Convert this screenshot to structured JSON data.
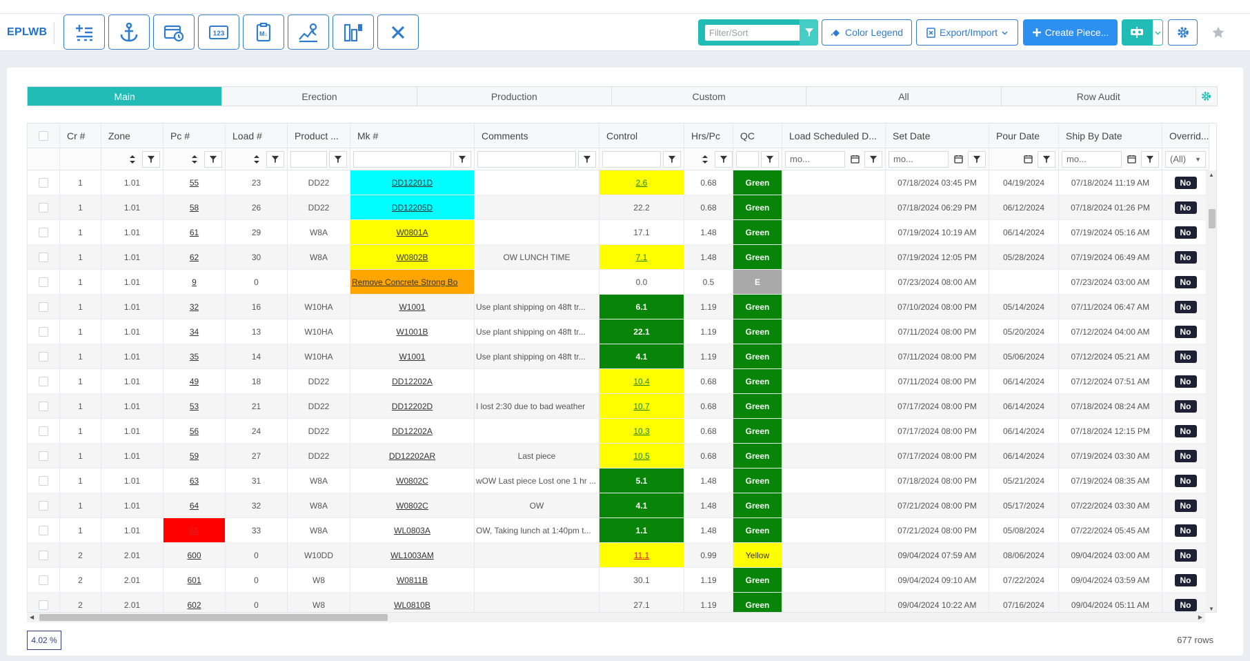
{
  "app": {
    "brand": "EPLWB"
  },
  "toolbar": {
    "icon_buttons": [
      {
        "name": "add-row-icon"
      },
      {
        "name": "anchor-icon"
      },
      {
        "name": "calendar-clock-icon"
      },
      {
        "name": "number-123-icon"
      },
      {
        "name": "clipboard-markdown-icon"
      },
      {
        "name": "crane-pour-icon"
      },
      {
        "name": "layout-columns-icon"
      },
      {
        "name": "close-icon"
      }
    ],
    "filter_placeholder": "Filter/Sort",
    "color_legend_label": "Color Legend",
    "export_import_label": "Export/Import",
    "create_piece_label": "Create Piece..."
  },
  "tabs": [
    {
      "label": "Main",
      "active": true
    },
    {
      "label": "Erection",
      "active": false
    },
    {
      "label": "Production",
      "active": false
    },
    {
      "label": "Custom",
      "active": false
    },
    {
      "label": "All",
      "active": false
    },
    {
      "label": "Row Audit",
      "active": false
    }
  ],
  "columns": [
    {
      "key": "select",
      "label": ""
    },
    {
      "key": "cr",
      "label": "Cr #"
    },
    {
      "key": "zone",
      "label": "Zone"
    },
    {
      "key": "pc",
      "label": "Pc #"
    },
    {
      "key": "load",
      "label": "Load #"
    },
    {
      "key": "product",
      "label": "Product ..."
    },
    {
      "key": "mk",
      "label": "Mk #"
    },
    {
      "key": "comments",
      "label": "Comments"
    },
    {
      "key": "control",
      "label": "Control"
    },
    {
      "key": "hrs",
      "label": "Hrs/Pc"
    },
    {
      "key": "qc",
      "label": "QC"
    },
    {
      "key": "load_sched",
      "label": "Load Scheduled D..."
    },
    {
      "key": "set_date",
      "label": "Set Date"
    },
    {
      "key": "pour_date",
      "label": "Pour Date"
    },
    {
      "key": "ship_by",
      "label": "Ship By Date"
    },
    {
      "key": "override",
      "label": "Overrid..."
    }
  ],
  "filters": {
    "date_placeholder": "mo...",
    "override_value": "(All)"
  },
  "colors": {
    "teal": "#22bcb6",
    "primary": "#2d8ff0",
    "qc_green": "#088408",
    "cyan": "#00ffff",
    "yellow": "#ffff00",
    "orange": "#ffa500",
    "red": "#ff0000",
    "gray": "#a9a9a9"
  },
  "rows": [
    {
      "cr": "1",
      "zone": "1.01",
      "pc": "55",
      "load": "23",
      "product": "DD22",
      "mk": "DD12201D",
      "mk_color": "cyan",
      "comments": "",
      "control": "2.6",
      "control_style": "yellow-link",
      "hrs": "0.68",
      "qc": "Green",
      "load_sched": "",
      "set_date": "07/18/2024 03:45 PM",
      "pour_date": "04/19/2024",
      "ship_by": "07/18/2024 11:19 AM",
      "override": "No"
    },
    {
      "cr": "1",
      "zone": "1.01",
      "pc": "58",
      "load": "26",
      "product": "DD22",
      "mk": "DD12205D",
      "mk_color": "cyan",
      "comments": "",
      "control": "22.2",
      "control_style": "plain",
      "hrs": "0.68",
      "qc": "Green",
      "load_sched": "",
      "set_date": "07/18/2024 06:29 PM",
      "pour_date": "06/12/2024",
      "ship_by": "07/18/2024 01:26 PM",
      "override": "No"
    },
    {
      "cr": "1",
      "zone": "1.01",
      "pc": "61",
      "load": "29",
      "product": "W8A",
      "mk": "W0801A",
      "mk_color": "yellow",
      "comments": "",
      "control": "17.1",
      "control_style": "plain",
      "hrs": "1.48",
      "qc": "Green",
      "load_sched": "",
      "set_date": "07/19/2024 10:19 AM",
      "pour_date": "06/14/2024",
      "ship_by": "07/19/2024 05:16 AM",
      "override": "No"
    },
    {
      "cr": "1",
      "zone": "1.01",
      "pc": "62",
      "load": "30",
      "product": "W8A",
      "mk": "W0802B",
      "mk_color": "yellow",
      "comments": "OW LUNCH TIME",
      "control": "7.1",
      "control_style": "yellow-link",
      "hrs": "1.48",
      "qc": "Green",
      "load_sched": "",
      "set_date": "07/19/2024 12:05 PM",
      "pour_date": "05/28/2024",
      "ship_by": "07/19/2024 06:49 AM",
      "override": "No"
    },
    {
      "cr": "1",
      "zone": "1.01",
      "pc": "9",
      "load": "0",
      "product": "",
      "mk": "Remove Concrete Strong Bo",
      "mk_color": "orange",
      "comments": "",
      "control": "0.0",
      "control_style": "plain",
      "hrs": "0.5",
      "qc": "E",
      "load_sched": "",
      "set_date": "07/23/2024 08:00 AM",
      "pour_date": "",
      "ship_by": "07/23/2024 03:00 AM",
      "override": "No"
    },
    {
      "cr": "1",
      "zone": "1.01",
      "pc": "32",
      "load": "16",
      "product": "W10HA",
      "mk": "W1001",
      "mk_color": "",
      "comments": "Use plant shipping on 48ft tr...",
      "control": "6.1",
      "control_style": "green",
      "hrs": "1.19",
      "qc": "Green",
      "load_sched": "",
      "set_date": "07/10/2024 08:00 PM",
      "pour_date": "05/14/2024",
      "ship_by": "07/11/2024 06:47 AM",
      "override": "No"
    },
    {
      "cr": "1",
      "zone": "1.01",
      "pc": "34",
      "load": "13",
      "product": "W10HA",
      "mk": "W1001B",
      "mk_color": "",
      "comments": "Use plant shipping on 48ft tr...",
      "control": "22.1",
      "control_style": "green",
      "hrs": "1.19",
      "qc": "Green",
      "load_sched": "",
      "set_date": "07/11/2024 08:00 PM",
      "pour_date": "05/20/2024",
      "ship_by": "07/12/2024 04:00 AM",
      "override": "No"
    },
    {
      "cr": "1",
      "zone": "1.01",
      "pc": "35",
      "load": "14",
      "product": "W10HA",
      "mk": "W1001",
      "mk_color": "",
      "comments": "Use plant shipping on 48ft tr...",
      "control": "4.1",
      "control_style": "green",
      "hrs": "1.19",
      "qc": "Green",
      "load_sched": "",
      "set_date": "07/11/2024 08:00 PM",
      "pour_date": "05/06/2024",
      "ship_by": "07/12/2024 05:21 AM",
      "override": "No"
    },
    {
      "cr": "1",
      "zone": "1.01",
      "pc": "49",
      "load": "18",
      "product": "DD22",
      "mk": "DD12202A",
      "mk_color": "",
      "comments": "",
      "control": "10.4",
      "control_style": "yellow-link",
      "hrs": "0.68",
      "qc": "Green",
      "load_sched": "",
      "set_date": "07/11/2024 08:00 PM",
      "pour_date": "06/14/2024",
      "ship_by": "07/12/2024 07:51 AM",
      "override": "No"
    },
    {
      "cr": "1",
      "zone": "1.01",
      "pc": "53",
      "load": "21",
      "product": "DD22",
      "mk": "DD12202D",
      "mk_color": "",
      "comments": "I lost 2:30 due to bad weather",
      "control": "10.7",
      "control_style": "yellow-link",
      "hrs": "0.68",
      "qc": "Green",
      "load_sched": "",
      "set_date": "07/17/2024 08:00 PM",
      "pour_date": "06/14/2024",
      "ship_by": "07/18/2024 08:24 AM",
      "override": "No"
    },
    {
      "cr": "1",
      "zone": "1.01",
      "pc": "56",
      "load": "24",
      "product": "DD22",
      "mk": "DD12202A",
      "mk_color": "",
      "comments": "",
      "control": "10.3",
      "control_style": "yellow-link",
      "hrs": "0.68",
      "qc": "Green",
      "load_sched": "",
      "set_date": "07/17/2024 08:00 PM",
      "pour_date": "06/14/2024",
      "ship_by": "07/18/2024 12:15 PM",
      "override": "No"
    },
    {
      "cr": "1",
      "zone": "1.01",
      "pc": "59",
      "load": "27",
      "product": "DD22",
      "mk": "DD12202AR",
      "mk_color": "",
      "comments": "Last piece",
      "control": "10.5",
      "control_style": "yellow-link",
      "hrs": "0.68",
      "qc": "Green",
      "load_sched": "",
      "set_date": "07/17/2024 08:00 PM",
      "pour_date": "06/14/2024",
      "ship_by": "07/19/2024 03:30 AM",
      "override": "No"
    },
    {
      "cr": "1",
      "zone": "1.01",
      "pc": "63",
      "load": "31",
      "product": "W8A",
      "mk": "W0802C",
      "mk_color": "",
      "comments": "wOW Last piece Lost one 1 hr ...",
      "control": "5.1",
      "control_style": "green",
      "hrs": "1.48",
      "qc": "Green",
      "load_sched": "",
      "set_date": "07/18/2024 08:00 PM",
      "pour_date": "05/21/2024",
      "ship_by": "07/19/2024 08:35 AM",
      "override": "No"
    },
    {
      "cr": "1",
      "zone": "1.01",
      "pc": "64",
      "load": "32",
      "product": "W8A",
      "mk": "W0802C",
      "mk_color": "",
      "comments": "OW",
      "control": "4.1",
      "control_style": "green",
      "hrs": "1.48",
      "qc": "Green",
      "load_sched": "",
      "set_date": "07/21/2024 08:00 PM",
      "pour_date": "05/17/2024",
      "ship_by": "07/22/2024 03:30 AM",
      "override": "No"
    },
    {
      "cr": "1",
      "zone": "1.01",
      "pc": "65",
      "pc_red": true,
      "load": "33",
      "product": "W8A",
      "mk": "WL0803A",
      "mk_color": "",
      "comments": "OW, Taking lunch at 1:40pm t...",
      "control": "1.1",
      "control_style": "green",
      "hrs": "1.48",
      "qc": "Green",
      "load_sched": "",
      "set_date": "07/21/2024 08:00 PM",
      "pour_date": "05/08/2024",
      "ship_by": "07/22/2024 05:45 AM",
      "override": "No"
    },
    {
      "cr": "2",
      "zone": "2.01",
      "pc": "600",
      "load": "0",
      "product": "W10DD",
      "mk": "WL1003AM",
      "mk_color": "",
      "comments": "",
      "control": "11.1",
      "control_style": "yellow-red",
      "hrs": "0.99",
      "qc": "Yellow",
      "load_sched": "",
      "set_date": "09/04/2024 07:59 AM",
      "pour_date": "08/06/2024",
      "ship_by": "09/04/2024 03:00 AM",
      "override": "No"
    },
    {
      "cr": "2",
      "zone": "2.01",
      "pc": "601",
      "load": "0",
      "product": "W8",
      "mk": "W0811B",
      "mk_color": "",
      "comments": "",
      "control": "30.1",
      "control_style": "plain",
      "hrs": "1.19",
      "qc": "Green",
      "load_sched": "",
      "set_date": "09/04/2024 09:10 AM",
      "pour_date": "07/22/2024",
      "ship_by": "09/04/2024 03:59 AM",
      "override": "No"
    },
    {
      "cr": "2",
      "zone": "2.01",
      "pc": "602",
      "load": "0",
      "product": "W8",
      "mk": "WL0810B",
      "mk_color": "",
      "comments": "",
      "control": "27.1",
      "control_style": "plain",
      "hrs": "1.19",
      "qc": "Green",
      "load_sched": "",
      "set_date": "09/04/2024 10:22 AM",
      "pour_date": "07/16/2024",
      "ship_by": "09/04/2024 05:11 AM",
      "override": "No"
    }
  ],
  "footer": {
    "percent": "4.02 %",
    "row_count": "677 rows"
  }
}
